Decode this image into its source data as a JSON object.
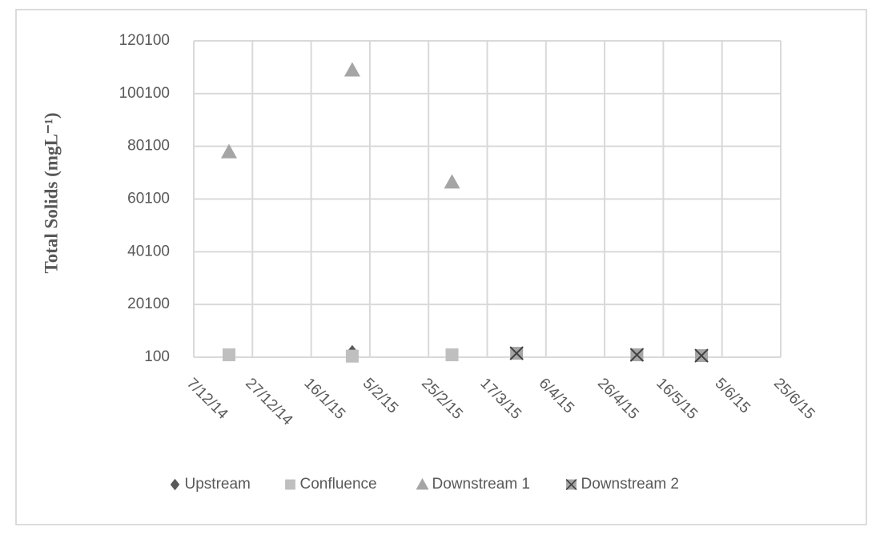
{
  "chart_data": {
    "type": "scatter",
    "y_label": "Total Solids (mgL⁻¹)",
    "xlim": [
      "7/12/14",
      "25/6/15"
    ],
    "xticks": [
      "7/12/14",
      "27/12/14",
      "16/1/15",
      "5/2/15",
      "25/2/15",
      "17/3/15",
      "6/4/15",
      "26/4/15",
      "16/5/15",
      "5/6/15",
      "25/6/15"
    ],
    "ylim": [
      100,
      120100
    ],
    "yticks": [
      100,
      20100,
      40100,
      60100,
      80100,
      100100,
      120100
    ],
    "grid": true,
    "legend": "bottom",
    "series": [
      {
        "name": "Upstream",
        "color": "#595959",
        "marker": "diamond",
        "x": [
          "30/1/15"
        ],
        "values": [
          2000
        ]
      },
      {
        "name": "Confluence",
        "color": "#bfbfbf",
        "marker": "square",
        "x": [
          "19/12/14",
          "30/1/15",
          "5/3/15"
        ],
        "values": [
          1000,
          500,
          1000
        ]
      },
      {
        "name": "Downstream 1",
        "color": "#a5a5a5",
        "marker": "triangle",
        "x": [
          "19/12/14",
          "30/1/15",
          "5/3/15"
        ],
        "values": [
          78000,
          109000,
          66500
        ]
      },
      {
        "name": "Downstream 2",
        "color": "#404040",
        "marker": "x",
        "x": [
          "27/3/15",
          "7/5/15",
          "29/5/15"
        ],
        "values": [
          1600,
          1000,
          700
        ]
      }
    ]
  }
}
